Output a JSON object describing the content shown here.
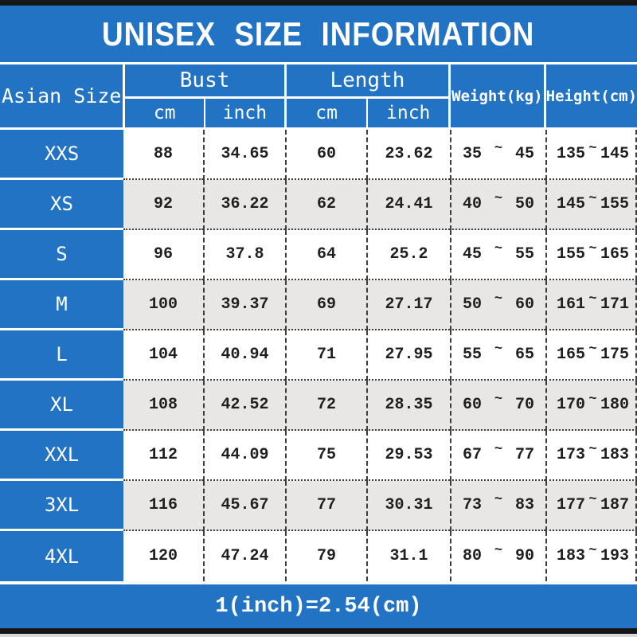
{
  "title": "UNISEX SIZE INFORMATION",
  "footer_note": "1(inch)=2.54(cm)",
  "colors": {
    "blue": "#2273c4",
    "shaded_row": "#e9e6e6",
    "bar_black": "#161616",
    "text_dark": "#1f1f1f",
    "text_white": "#ffffff"
  },
  "table": {
    "size_header": "Asian Size",
    "groups": [
      {
        "label": "Bust",
        "sub": [
          "cm",
          "inch"
        ]
      },
      {
        "label": "Length",
        "sub": [
          "cm",
          "inch"
        ]
      }
    ],
    "weight_header": "Weight(kg)",
    "height_header": "Height(cm)",
    "tilde": "~",
    "rows": [
      {
        "size": "XXS",
        "bust_cm": "88",
        "bust_inch": "34.65",
        "len_cm": "60",
        "len_inch": "23.62",
        "w_min": "35",
        "w_max": "45",
        "h_min": "135",
        "h_max": "145",
        "shaded": false
      },
      {
        "size": "XS",
        "bust_cm": "92",
        "bust_inch": "36.22",
        "len_cm": "62",
        "len_inch": "24.41",
        "w_min": "40",
        "w_max": "50",
        "h_min": "145",
        "h_max": "155",
        "shaded": true
      },
      {
        "size": "S",
        "bust_cm": "96",
        "bust_inch": "37.8",
        "len_cm": "64",
        "len_inch": "25.2",
        "w_min": "45",
        "w_max": "55",
        "h_min": "155",
        "h_max": "165",
        "shaded": false
      },
      {
        "size": "M",
        "bust_cm": "100",
        "bust_inch": "39.37",
        "len_cm": "69",
        "len_inch": "27.17",
        "w_min": "50",
        "w_max": "60",
        "h_min": "161",
        "h_max": "171",
        "shaded": true
      },
      {
        "size": "L",
        "bust_cm": "104",
        "bust_inch": "40.94",
        "len_cm": "71",
        "len_inch": "27.95",
        "w_min": "55",
        "w_max": "65",
        "h_min": "165",
        "h_max": "175",
        "shaded": false
      },
      {
        "size": "XL",
        "bust_cm": "108",
        "bust_inch": "42.52",
        "len_cm": "72",
        "len_inch": "28.35",
        "w_min": "60",
        "w_max": "70",
        "h_min": "170",
        "h_max": "180",
        "shaded": true
      },
      {
        "size": "XXL",
        "bust_cm": "112",
        "bust_inch": "44.09",
        "len_cm": "75",
        "len_inch": "29.53",
        "w_min": "67",
        "w_max": "77",
        "h_min": "173",
        "h_max": "183",
        "shaded": false
      },
      {
        "size": "3XL",
        "bust_cm": "116",
        "bust_inch": "45.67",
        "len_cm": "77",
        "len_inch": "30.31",
        "w_min": "73",
        "w_max": "83",
        "h_min": "177",
        "h_max": "187",
        "shaded": true
      },
      {
        "size": "4XL",
        "bust_cm": "120",
        "bust_inch": "47.24",
        "len_cm": "79",
        "len_inch": "31.1",
        "w_min": "80",
        "w_max": "90",
        "h_min": "183",
        "h_max": "193",
        "shaded": false
      }
    ]
  },
  "chart_data": {
    "type": "table",
    "title": "UNISEX SIZE INFORMATION",
    "columns": [
      "Asian Size",
      "Bust cm",
      "Bust inch",
      "Length cm",
      "Length inch",
      "Weight(kg)",
      "Height(cm)"
    ],
    "rows": [
      [
        "XXS",
        88,
        34.65,
        60,
        23.62,
        "35~45",
        "135~145"
      ],
      [
        "XS",
        92,
        36.22,
        62,
        24.41,
        "40~50",
        "145~155"
      ],
      [
        "S",
        96,
        37.8,
        64,
        25.2,
        "45~55",
        "155~165"
      ],
      [
        "M",
        100,
        39.37,
        69,
        27.17,
        "50~60",
        "161~171"
      ],
      [
        "L",
        104,
        40.94,
        71,
        27.95,
        "55~65",
        "165~175"
      ],
      [
        "XL",
        108,
        42.52,
        72,
        28.35,
        "60~70",
        "170~180"
      ],
      [
        "XXL",
        112,
        44.09,
        75,
        29.53,
        "67~77",
        "173~183"
      ],
      [
        "3XL",
        116,
        45.67,
        77,
        30.31,
        "73~83",
        "177~187"
      ],
      [
        "4XL",
        120,
        47.24,
        79,
        31.1,
        "80~90",
        "183~193"
      ]
    ],
    "note": "1(inch)=2.54(cm)"
  }
}
